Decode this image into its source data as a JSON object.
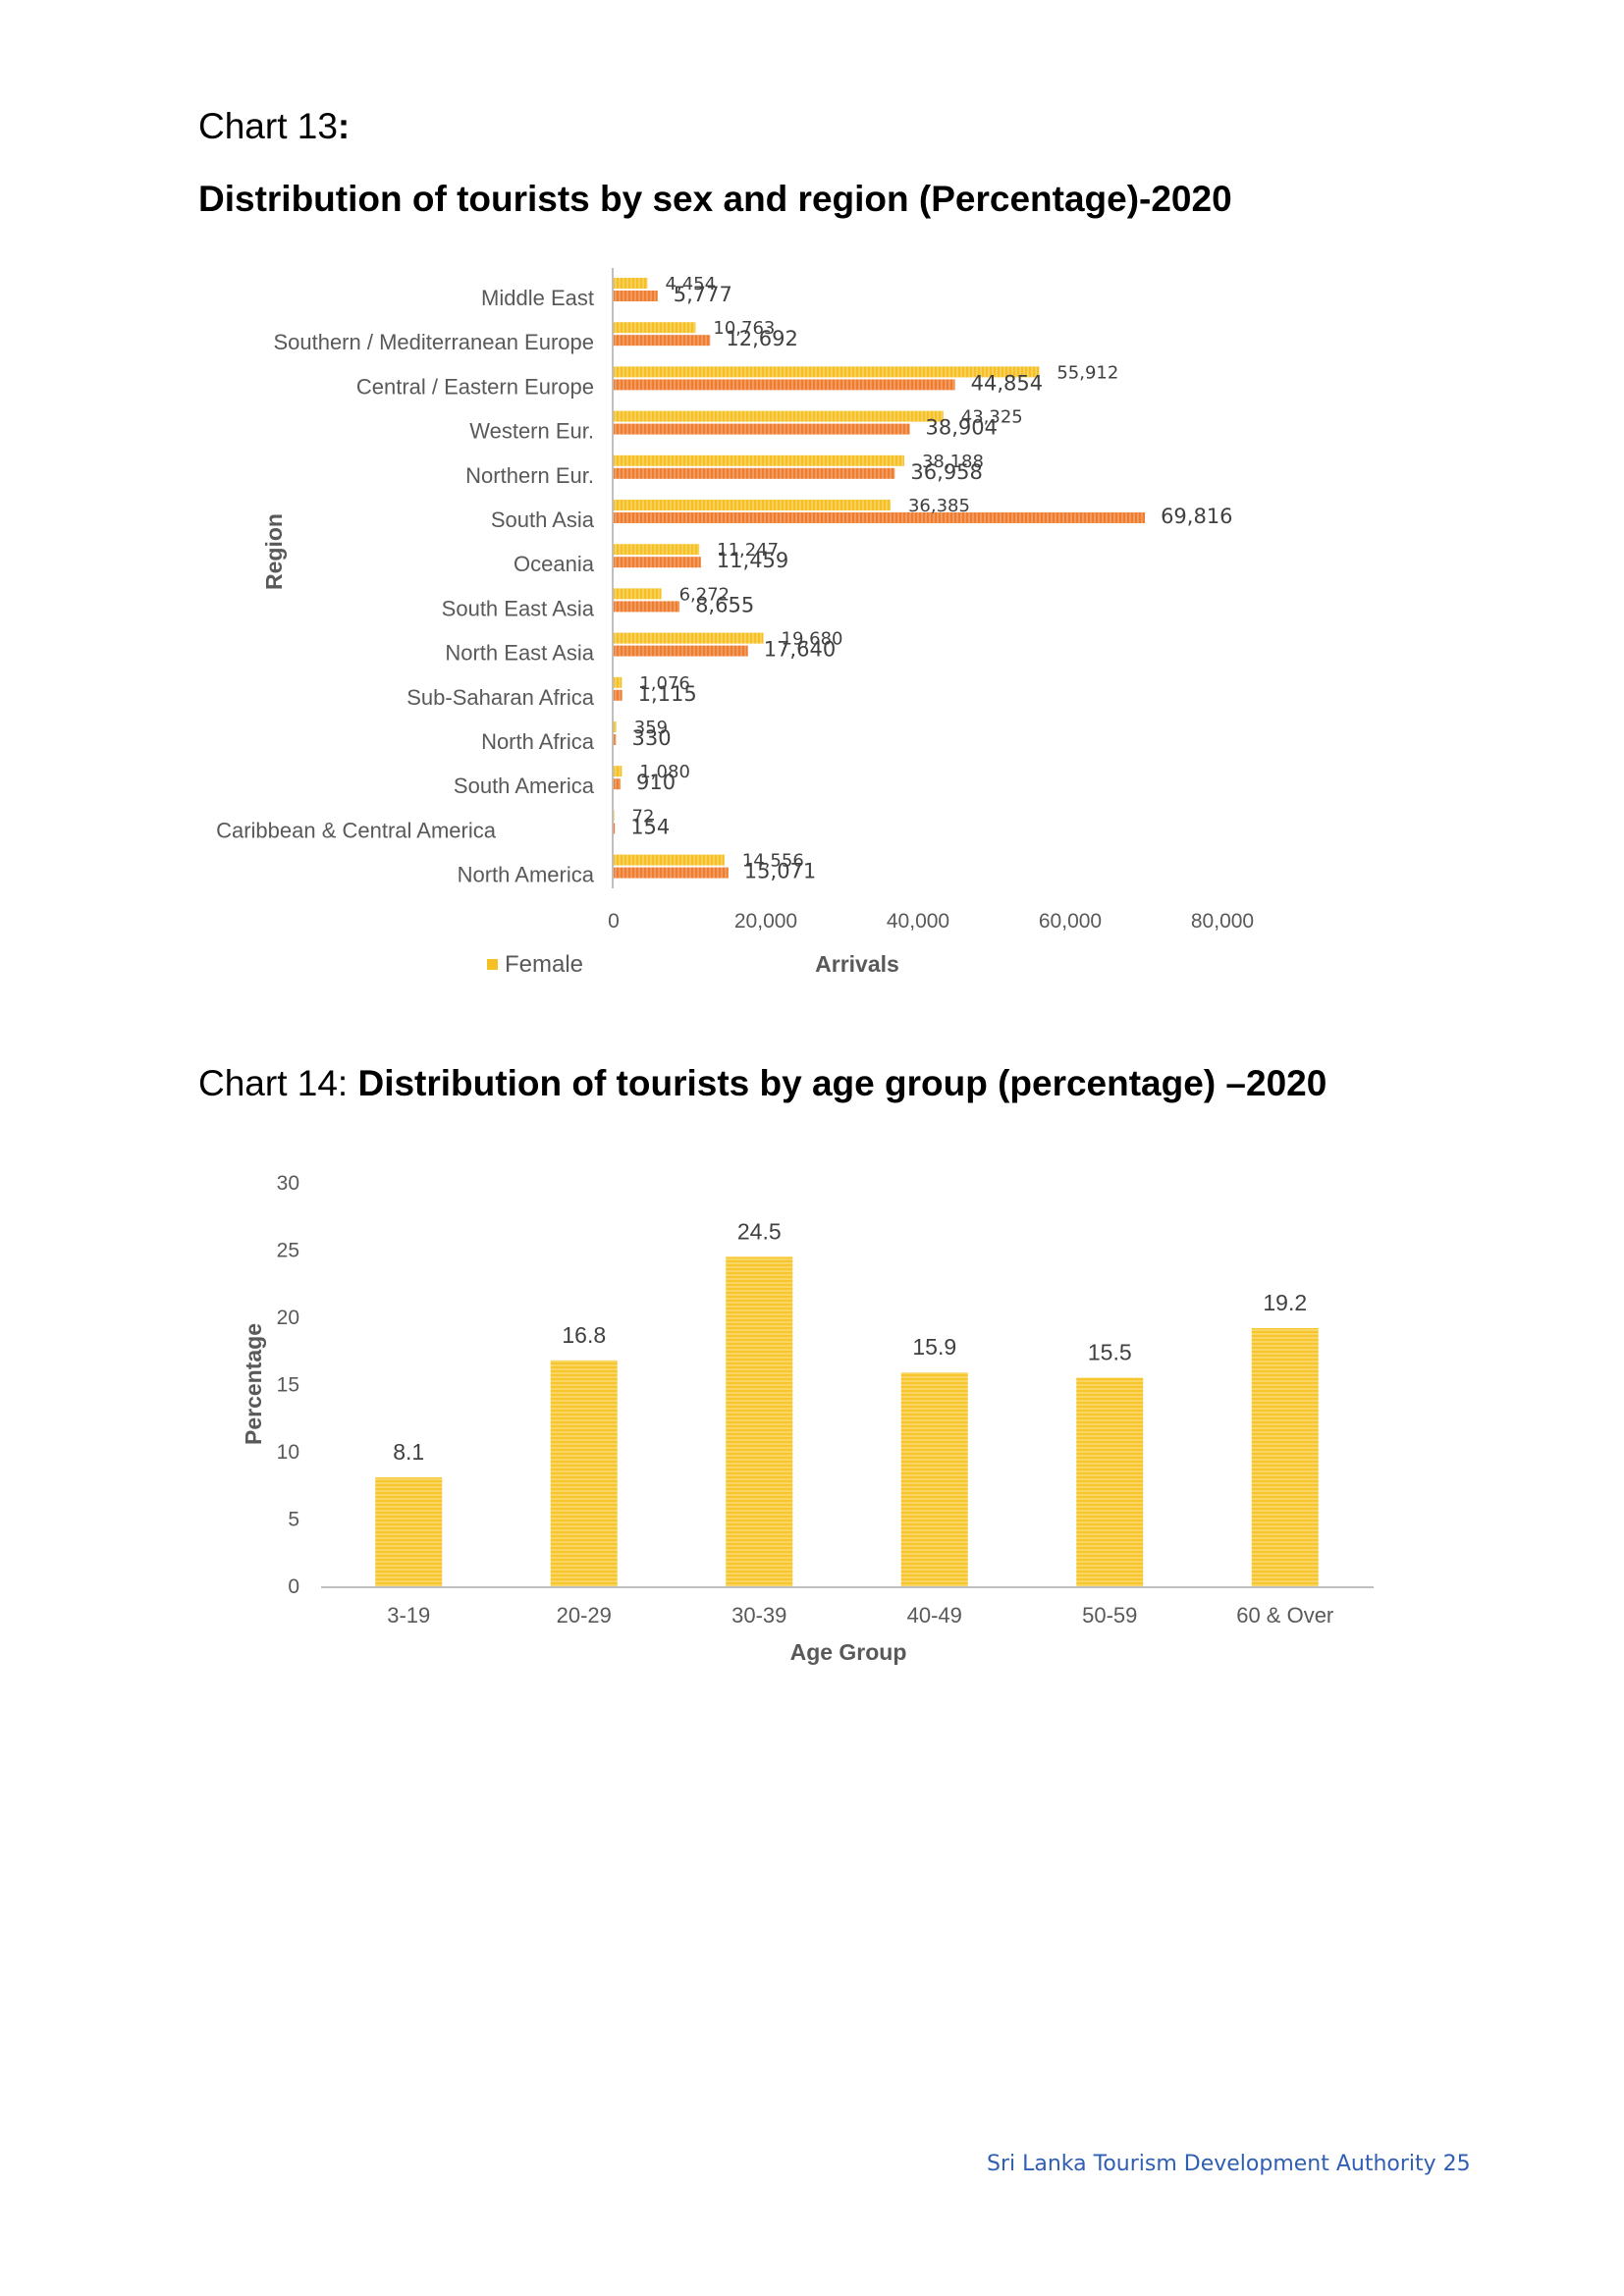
{
  "headings": {
    "chart13_prefix": "Chart 13",
    "chart13_colon": ":",
    "chart13_title": "Distribution of tourists by sex and region (Percentage)-2020",
    "chart14_prefix": "Chart 14: ",
    "chart14_title": "Distribution of tourists by age group (percentage) –2020"
  },
  "footer": "Sri Lanka Tourism Development Authority 25",
  "colors": {
    "female": "#f5bf26",
    "male": "#ed7d31",
    "age_bar": "#f7c62c",
    "axis": "#bfbfbf"
  },
  "chart_data": [
    {
      "type": "bar",
      "orientation": "horizontal",
      "categories": [
        "Middle East",
        "Southern / Mediterranean Europe",
        "Central / Eastern Europe",
        "Western Eur.",
        "Northern Eur.",
        "South Asia",
        "Oceania",
        "South East Asia",
        "North East Asia",
        "Sub-Saharan Africa",
        "North Africa",
        "South America",
        "Caribbean & Central America",
        "North America"
      ],
      "series": [
        {
          "name": "Female",
          "values": [
            4454,
            10763,
            55912,
            43325,
            38188,
            36385,
            11247,
            6272,
            19680,
            1076,
            359,
            1080,
            72,
            14556
          ]
        },
        {
          "values": [
            5777,
            12692,
            44854,
            38904,
            36958,
            69816,
            11459,
            8655,
            17640,
            1115,
            330,
            910,
            154,
            15071
          ]
        }
      ],
      "value_labels": [
        [
          "4,454",
          "10,763",
          "55,912",
          "43,325",
          "38,188",
          "36,385",
          "11,247",
          "6,272",
          "19,680",
          "1,076",
          "359",
          "1,080",
          "72",
          "14,556"
        ],
        [
          "5,777",
          "12,692",
          "44,854",
          "38,904",
          "36,958",
          "69,816",
          "11,459",
          "8,655",
          "17,640",
          "1,115",
          "330",
          "910",
          "154",
          "15,071"
        ]
      ],
      "xlabel": "Arrivals",
      "ylabel": "Region",
      "xlim": [
        0,
        80000
      ],
      "xticks": [
        0,
        20000,
        40000,
        60000,
        80000
      ],
      "xtick_labels": [
        "0",
        "20,000",
        "40,000",
        "60,000",
        "80,000"
      ],
      "legend": {
        "position": "bottom-left",
        "entries": [
          "Female"
        ]
      },
      "grid": false
    },
    {
      "type": "bar",
      "categories": [
        "3-19",
        "20-29",
        "30-39",
        "40-49",
        "50-59",
        "60 & Over"
      ],
      "values": [
        8.1,
        16.8,
        24.5,
        15.9,
        15.5,
        19.2
      ],
      "value_labels": [
        "8.1",
        "16.8",
        "24.5",
        "15.9",
        "15.5",
        "19.2"
      ],
      "xlabel": "Age Group",
      "ylabel": "Percentage",
      "ylim": [
        0,
        30
      ],
      "yticks": [
        0,
        5,
        10,
        15,
        20,
        25,
        30
      ],
      "ytick_labels": [
        "0",
        "5",
        "10",
        "15",
        "20",
        "25",
        "30"
      ],
      "grid": false
    }
  ]
}
